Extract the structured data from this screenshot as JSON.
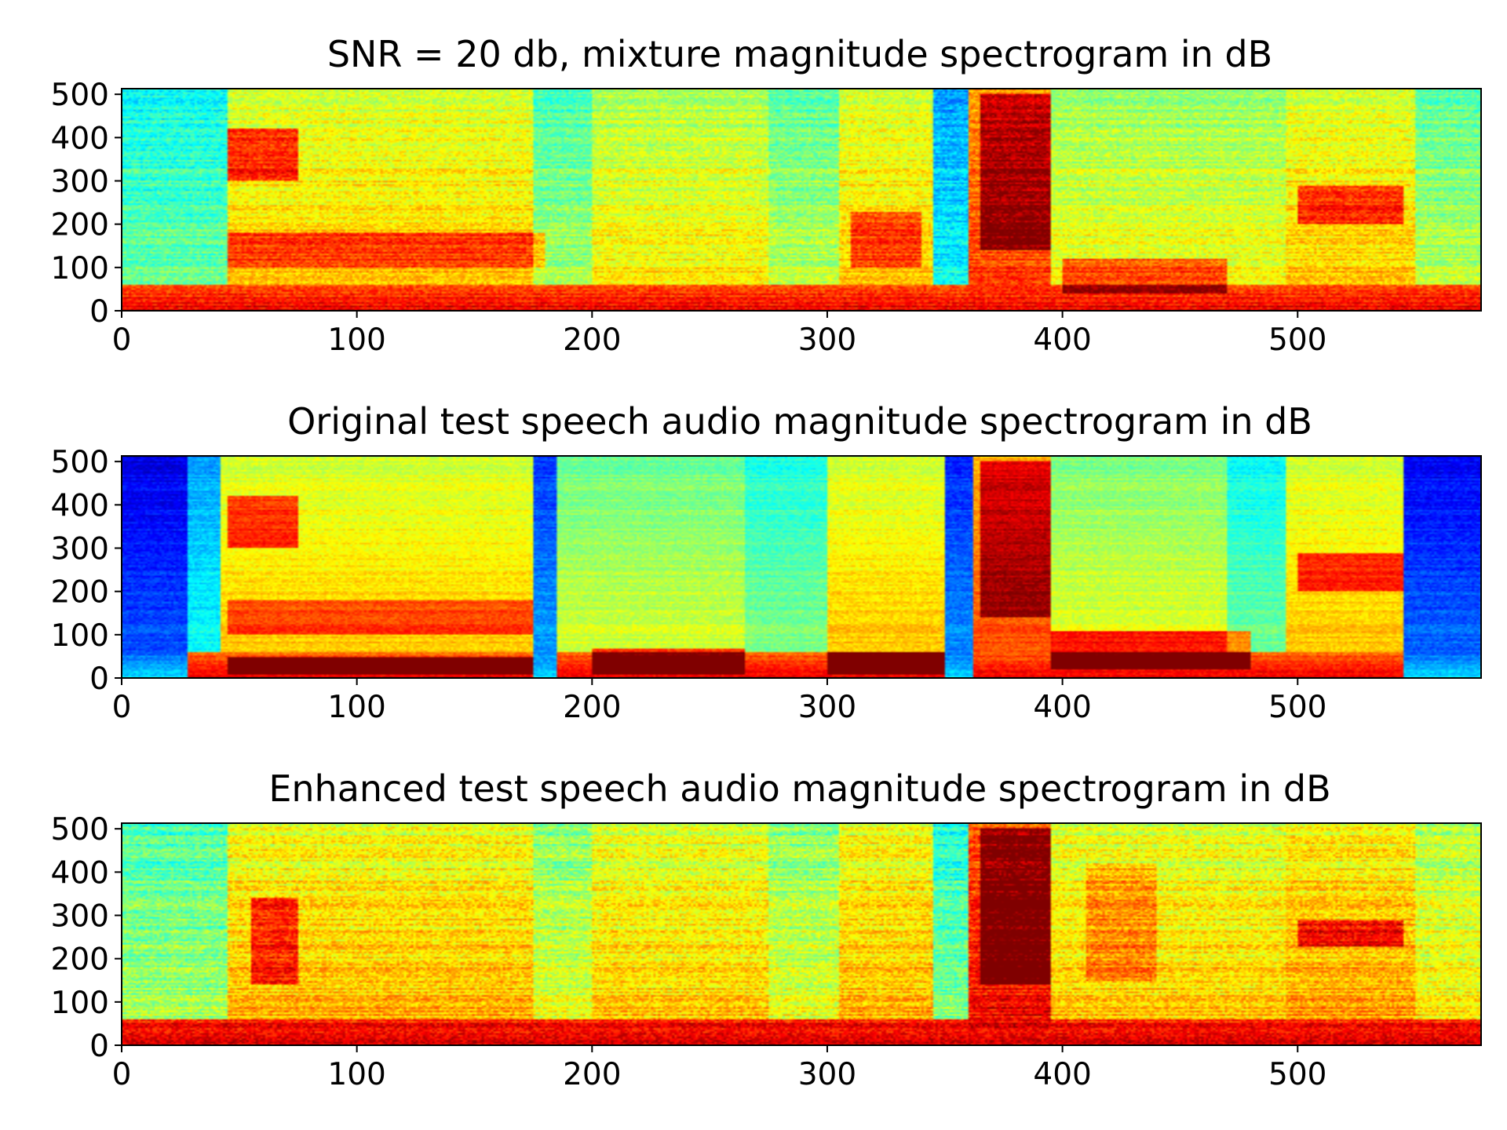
{
  "chart_data": [
    {
      "type": "heatmap",
      "title": "SNR = 20 db, mixture magnitude spectrogram in dB",
      "xlim": [
        0,
        578
      ],
      "ylim": [
        0,
        513
      ],
      "xticks": [
        0,
        100,
        200,
        300,
        400,
        500
      ],
      "yticks": [
        0,
        100,
        200,
        300,
        400,
        500
      ],
      "colormap": "jet",
      "low_freq_energy": 0.9,
      "floor": 0.48,
      "noise": 0.11,
      "segments": [
        {
          "x0": 0,
          "x1": 45,
          "level": 0.5
        },
        {
          "x0": 45,
          "x1": 175,
          "level": 0.7
        },
        {
          "x0": 175,
          "x1": 200,
          "level": 0.56
        },
        {
          "x0": 200,
          "x1": 275,
          "level": 0.66
        },
        {
          "x0": 275,
          "x1": 305,
          "level": 0.58
        },
        {
          "x0": 305,
          "x1": 345,
          "level": 0.7
        },
        {
          "x0": 345,
          "x1": 360,
          "level": 0.4
        },
        {
          "x0": 360,
          "x1": 395,
          "level": 0.84
        },
        {
          "x0": 395,
          "x1": 495,
          "level": 0.64
        },
        {
          "x0": 495,
          "x1": 550,
          "level": 0.7
        },
        {
          "x0": 550,
          "x1": 578,
          "level": 0.58
        }
      ],
      "formants": [
        {
          "x0": 45,
          "x1": 75,
          "y0": 300,
          "y1": 420,
          "gain": 0.22
        },
        {
          "x0": 45,
          "x1": 180,
          "y0": 100,
          "y1": 180,
          "gain": 0.16
        },
        {
          "x0": 365,
          "x1": 395,
          "y0": 140,
          "y1": 500,
          "gain": 0.2
        },
        {
          "x0": 500,
          "x1": 545,
          "y0": 200,
          "y1": 290,
          "gain": 0.2
        },
        {
          "x0": 400,
          "x1": 470,
          "y0": 40,
          "y1": 120,
          "gain": 0.18
        },
        {
          "x0": 310,
          "x1": 340,
          "y0": 100,
          "y1": 230,
          "gain": 0.16
        }
      ]
    },
    {
      "type": "heatmap",
      "title": "Original test speech audio magnitude spectrogram in dB",
      "xlim": [
        0,
        578
      ],
      "ylim": [
        0,
        513
      ],
      "xticks": [
        0,
        100,
        200,
        300,
        400,
        500
      ],
      "yticks": [
        0,
        100,
        200,
        300,
        400,
        500
      ],
      "colormap": "jet",
      "low_freq_energy": 0.9,
      "floor": 0.3,
      "noise": 0.07,
      "segments": [
        {
          "x0": 0,
          "x1": 28,
          "level": 0.22
        },
        {
          "x0": 28,
          "x1": 42,
          "level": 0.4
        },
        {
          "x0": 42,
          "x1": 175,
          "level": 0.7
        },
        {
          "x0": 175,
          "x1": 185,
          "level": 0.3
        },
        {
          "x0": 185,
          "x1": 265,
          "level": 0.6
        },
        {
          "x0": 265,
          "x1": 300,
          "level": 0.52
        },
        {
          "x0": 300,
          "x1": 350,
          "level": 0.7
        },
        {
          "x0": 350,
          "x1": 362,
          "level": 0.28
        },
        {
          "x0": 362,
          "x1": 395,
          "level": 0.82
        },
        {
          "x0": 395,
          "x1": 470,
          "level": 0.62
        },
        {
          "x0": 470,
          "x1": 495,
          "level": 0.5
        },
        {
          "x0": 495,
          "x1": 545,
          "level": 0.7
        },
        {
          "x0": 545,
          "x1": 578,
          "level": 0.24
        }
      ],
      "formants": [
        {
          "x0": 45,
          "x1": 75,
          "y0": 300,
          "y1": 420,
          "gain": 0.22
        },
        {
          "x0": 45,
          "x1": 175,
          "y0": 10,
          "y1": 50,
          "gain": 0.28
        },
        {
          "x0": 45,
          "x1": 175,
          "y0": 100,
          "y1": 180,
          "gain": 0.14
        },
        {
          "x0": 365,
          "x1": 395,
          "y0": 140,
          "y1": 500,
          "gain": 0.2
        },
        {
          "x0": 500,
          "x1": 545,
          "y0": 200,
          "y1": 290,
          "gain": 0.2
        },
        {
          "x0": 395,
          "x1": 480,
          "y0": 20,
          "y1": 110,
          "gain": 0.26
        },
        {
          "x0": 300,
          "x1": 350,
          "y0": 10,
          "y1": 60,
          "gain": 0.26
        },
        {
          "x0": 200,
          "x1": 265,
          "y0": 10,
          "y1": 70,
          "gain": 0.24
        }
      ]
    },
    {
      "type": "heatmap",
      "title": "Enhanced test speech audio magnitude spectrogram in dB",
      "xlim": [
        0,
        578
      ],
      "ylim": [
        0,
        513
      ],
      "xticks": [
        0,
        100,
        200,
        300,
        400,
        500
      ],
      "yticks": [
        0,
        100,
        200,
        300,
        400,
        500
      ],
      "colormap": "jet",
      "low_freq_energy": 0.95,
      "floor": 0.55,
      "noise": 0.13,
      "segments": [
        {
          "x0": 0,
          "x1": 45,
          "level": 0.56
        },
        {
          "x0": 45,
          "x1": 175,
          "level": 0.72
        },
        {
          "x0": 175,
          "x1": 200,
          "level": 0.62
        },
        {
          "x0": 200,
          "x1": 275,
          "level": 0.7
        },
        {
          "x0": 275,
          "x1": 305,
          "level": 0.62
        },
        {
          "x0": 305,
          "x1": 345,
          "level": 0.72
        },
        {
          "x0": 345,
          "x1": 360,
          "level": 0.52
        },
        {
          "x0": 360,
          "x1": 395,
          "level": 0.9
        },
        {
          "x0": 395,
          "x1": 495,
          "level": 0.7
        },
        {
          "x0": 495,
          "x1": 550,
          "level": 0.74
        },
        {
          "x0": 550,
          "x1": 578,
          "level": 0.66
        }
      ],
      "formants": [
        {
          "x0": 55,
          "x1": 75,
          "y0": 140,
          "y1": 340,
          "gain": 0.18
        },
        {
          "x0": 365,
          "x1": 395,
          "y0": 140,
          "y1": 500,
          "gain": 0.2
        },
        {
          "x0": 500,
          "x1": 545,
          "y0": 230,
          "y1": 290,
          "gain": 0.2
        },
        {
          "x0": 410,
          "x1": 440,
          "y0": 150,
          "y1": 420,
          "gain": 0.1
        }
      ]
    }
  ]
}
